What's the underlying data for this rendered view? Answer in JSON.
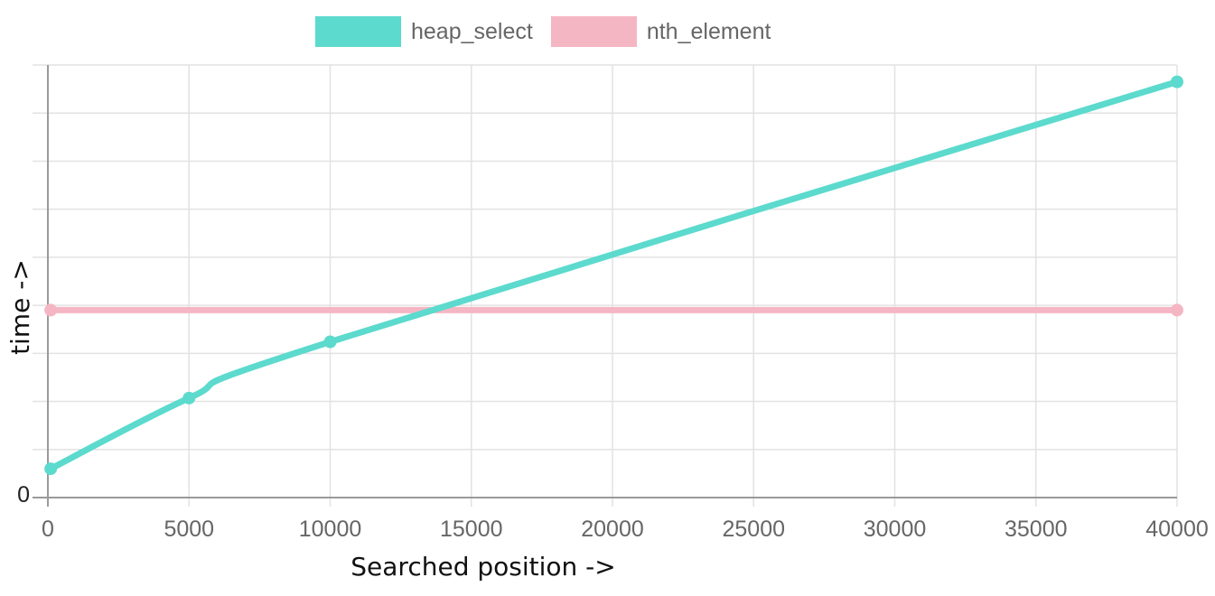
{
  "colors": {
    "heap_select": "#5cdacd",
    "nth_element": "#f5b6c3",
    "grid": "#e2e2e2",
    "axis": "#9a9a9a"
  },
  "chart_data": {
    "type": "line",
    "xlabel": "Searched position ->",
    "ylabel": "time ->",
    "xlim": [
      0,
      40000
    ],
    "ylim": [
      0,
      9
    ],
    "x_ticks": [
      0,
      5000,
      10000,
      15000,
      20000,
      25000,
      30000,
      35000,
      40000
    ],
    "y_tick_labels": [
      "0"
    ],
    "y_gridlines": 9,
    "grid": true,
    "legend_position": "top-center",
    "series": [
      {
        "name": "heap_select",
        "color": "#5cdacd",
        "points": [
          [
            100,
            0.6
          ],
          [
            5000,
            2.07
          ],
          [
            10000,
            3.24
          ],
          [
            40000,
            8.65
          ]
        ]
      },
      {
        "name": "nth_element",
        "color": "#f5b6c3",
        "points": [
          [
            100,
            3.9
          ],
          [
            40000,
            3.9
          ]
        ]
      }
    ]
  }
}
